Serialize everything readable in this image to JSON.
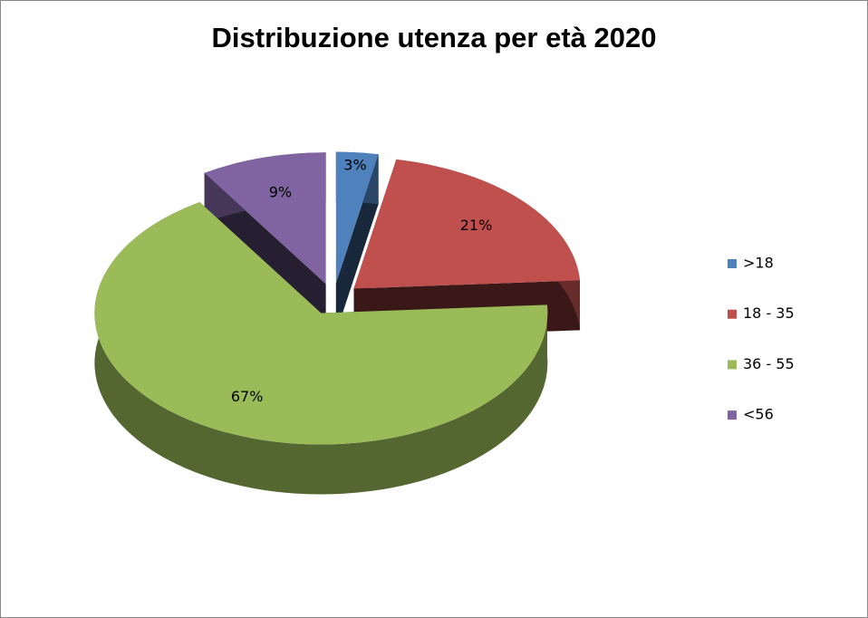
{
  "chart_data": {
    "type": "pie",
    "title": "Distribuzione utenza per età 2020",
    "categories": [
      ">18",
      "18 - 35",
      "36 - 55",
      "<56"
    ],
    "series": [
      {
        "values": [
          3,
          21,
          67,
          9
        ],
        "value_labels": [
          "3%",
          "21%",
          "67%",
          "9%"
        ],
        "colors": [
          "#4f81bd",
          "#c0504d",
          "#9bbb59",
          "#8064a2"
        ]
      }
    ],
    "legend": "right"
  }
}
